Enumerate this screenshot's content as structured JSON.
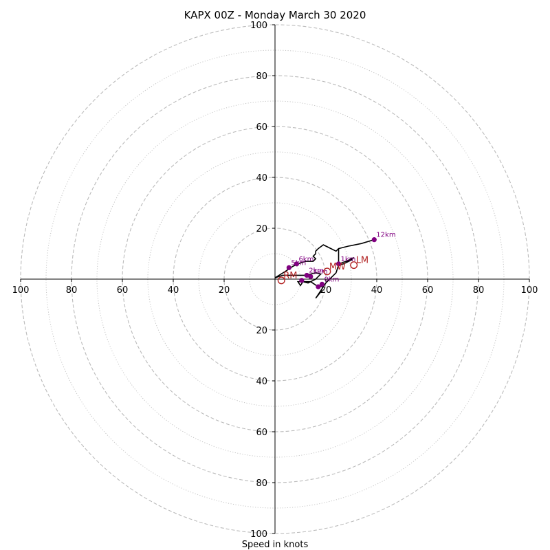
{
  "chart_data": {
    "type": "hodograph",
    "title": "KAPX 00Z - Monday March 30 2020",
    "xlabel": "Speed in knots",
    "max_speed": 100,
    "dashed_rings": [
      20,
      40,
      60,
      80,
      100
    ],
    "dotted_rings": [
      10,
      30,
      50,
      70,
      90
    ],
    "x_tick_labels": [
      "100",
      "80",
      "60",
      "40",
      "20",
      "20",
      "40",
      "60",
      "80",
      "100"
    ],
    "x_tick_values": [
      -100,
      -80,
      -60,
      -40,
      -20,
      20,
      40,
      60,
      80,
      100
    ],
    "y_tick_labels": [
      "100",
      "80",
      "60",
      "40",
      "20",
      "20",
      "40",
      "60",
      "80",
      "100"
    ],
    "y_tick_values": [
      100,
      80,
      60,
      40,
      20,
      -20,
      -40,
      -60,
      -80,
      -100
    ],
    "trace": [
      [
        0,
        0.5
      ],
      [
        3,
        1.5
      ],
      [
        6,
        1.5
      ],
      [
        10,
        1.5
      ],
      [
        12,
        1.5
      ],
      [
        14,
        2
      ],
      [
        16,
        2.5
      ],
      [
        18,
        2
      ],
      [
        16,
        0
      ],
      [
        13,
        -1.5
      ],
      [
        11,
        -1
      ],
      [
        10,
        -2.5
      ],
      [
        9,
        -1
      ],
      [
        14,
        -1
      ],
      [
        17,
        -3
      ],
      [
        19,
        -2.5
      ],
      [
        18,
        -5
      ],
      [
        16,
        -7.5
      ],
      [
        20,
        -1.5
      ],
      [
        22,
        0.5
      ],
      [
        24,
        2.5
      ],
      [
        25,
        5.5
      ],
      [
        27,
        6
      ],
      [
        30,
        7.5
      ],
      [
        31,
        8.5
      ],
      [
        28,
        7
      ],
      [
        25,
        6
      ],
      [
        25,
        8
      ],
      [
        25,
        10.5
      ],
      [
        25,
        11.5
      ],
      [
        25,
        12
      ],
      [
        29,
        13
      ],
      [
        34,
        14
      ],
      [
        39,
        15.5
      ],
      [
        34,
        14
      ],
      [
        29,
        13
      ],
      [
        25,
        12
      ],
      [
        24,
        11
      ],
      [
        22,
        12
      ],
      [
        19,
        13.5
      ],
      [
        17,
        12
      ],
      [
        16,
        11
      ],
      [
        16,
        10
      ],
      [
        15,
        9
      ],
      [
        16,
        8
      ],
      [
        15,
        7
      ],
      [
        13,
        7
      ],
      [
        12,
        7
      ],
      [
        9,
        6
      ],
      [
        7,
        5
      ],
      [
        4,
        3
      ],
      [
        0,
        0.5
      ]
    ],
    "markers": [
      {
        "label": "12km",
        "u": 39,
        "v": 15.5
      },
      {
        "label": "1km",
        "u": 25,
        "v": 6
      },
      {
        "label": "6km",
        "u": 8.5,
        "v": 6
      },
      {
        "label": "5km",
        "u": 5.5,
        "v": 4.5
      },
      {
        "label": "2km",
        "u": 12.5,
        "v": 1.5
      },
      {
        "label": "3km",
        "u": 14,
        "v": 1
      },
      {
        "label": "0km",
        "u": 18.5,
        "v": -2
      },
      {
        "label": "",
        "u": 10.5,
        "v": -0.5
      },
      {
        "label": "",
        "u": 17,
        "v": -3
      }
    ],
    "storm_motion": [
      {
        "label": "LM",
        "u": 31,
        "v": 5.5
      },
      {
        "label": "MW",
        "u": 20.5,
        "v": 3
      },
      {
        "label": "RM",
        "u": 2.5,
        "v": -0.5
      }
    ],
    "colors": {
      "ring": "#bbbbbb",
      "axis": "#000000",
      "trace": "#000000",
      "marker": "#800080",
      "storm_motion": "#b22222"
    }
  }
}
